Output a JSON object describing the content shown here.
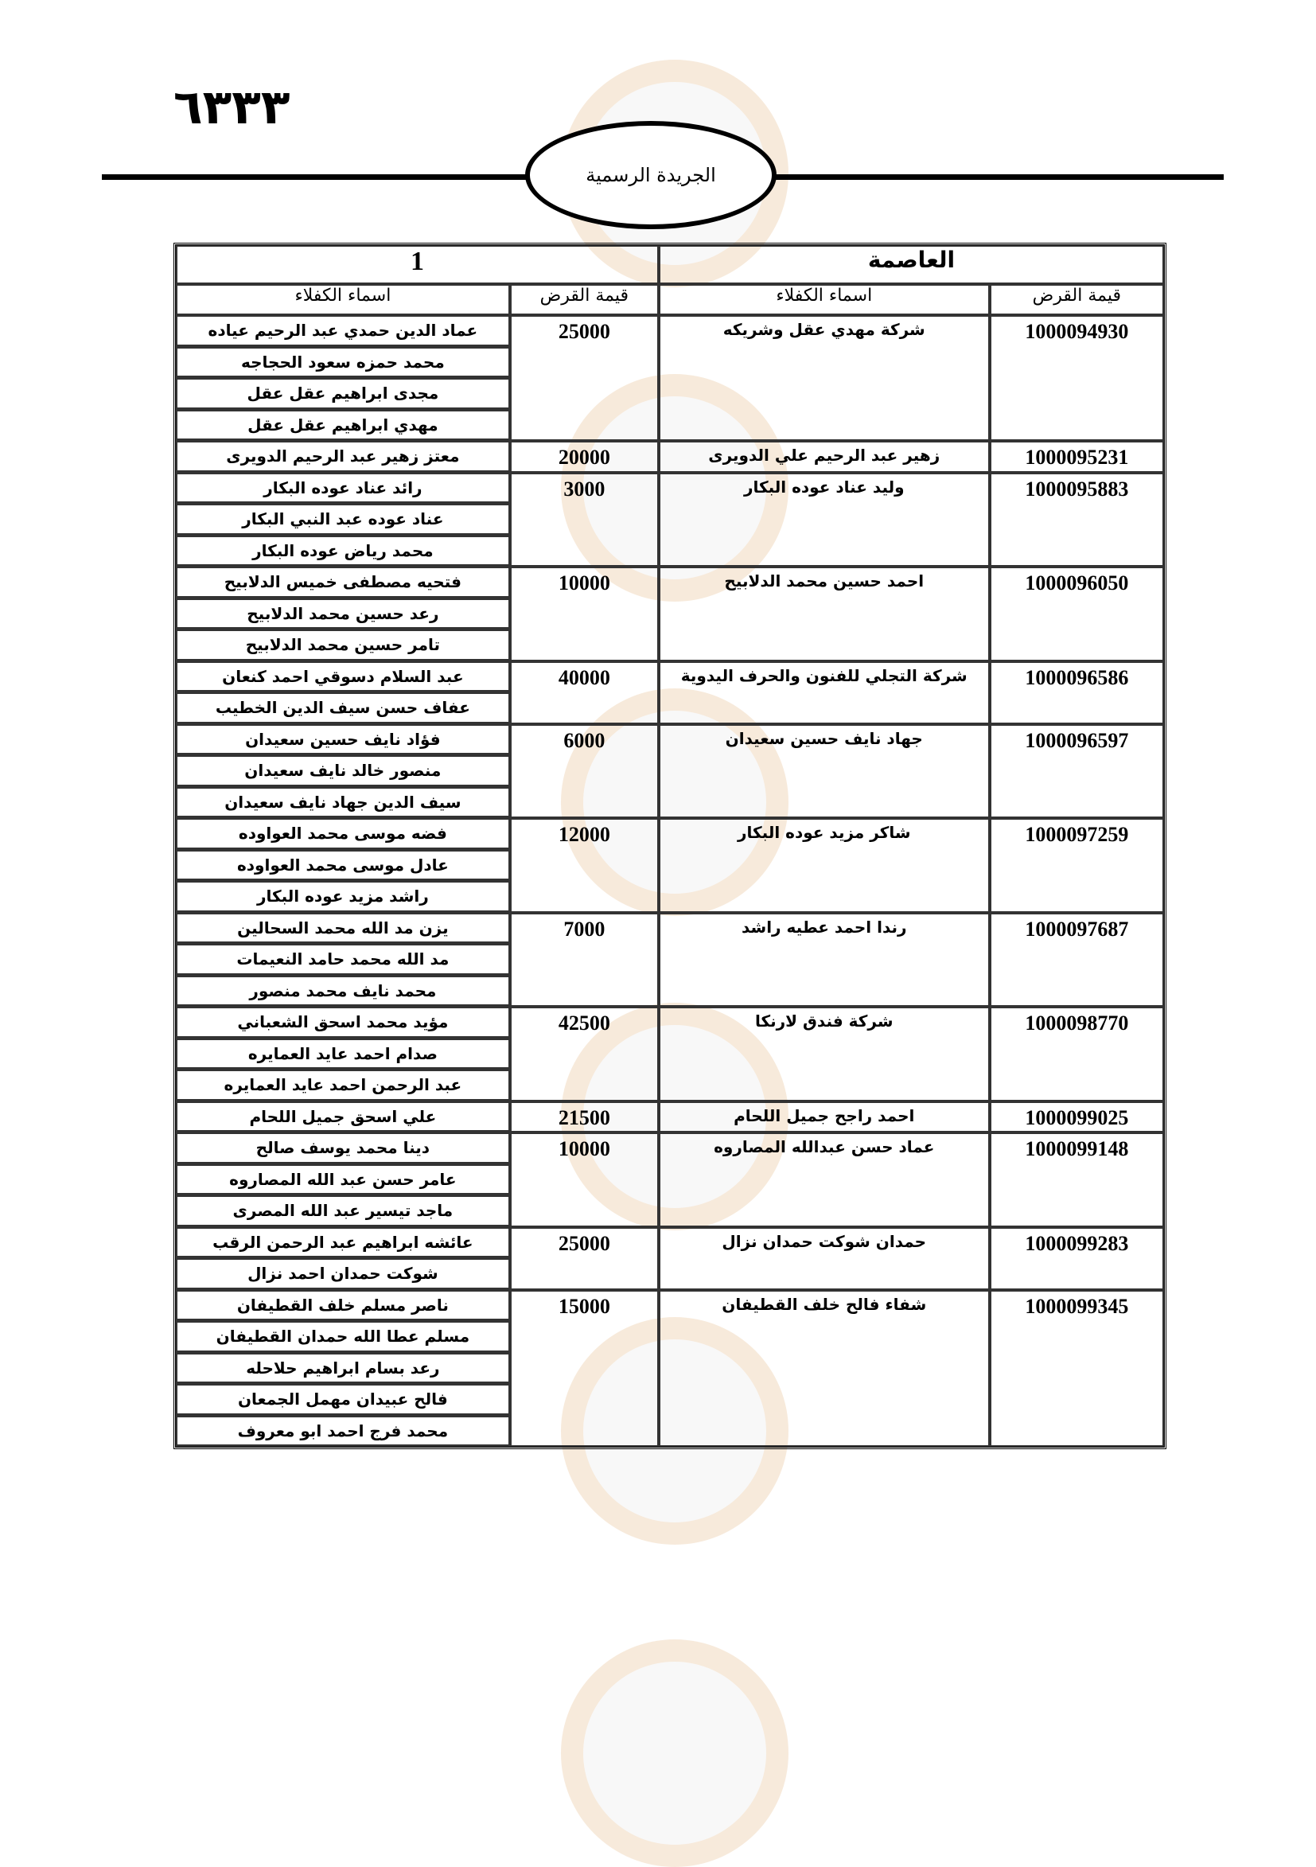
{
  "page_number": "٦٣٣٣",
  "header": {
    "publication": "الجريدة الرسمية"
  },
  "table": {
    "region": "العاصمة",
    "page_index": "1",
    "columns": {
      "loan_number": "قيمة القرض",
      "borrower": "اسماء الكفلاء",
      "loan_value": "قيمة القرض",
      "guarantors": "اسماء الكفلاء"
    },
    "records": [
      {
        "loan_number": "1000094930",
        "borrower": "شركة مهدي عقل وشريكه",
        "loan_value": "25000",
        "guarantors": [
          "عماد الدين حمدي عبد الرحيم عياده",
          "محمد حمزه سعود الحجاجه",
          "مجدى ابراهيم عقل عقل",
          "مهدي ابراهيم عقل عقل"
        ]
      },
      {
        "loan_number": "1000095231",
        "borrower": "زهير عبد الرحيم علي الدويرى",
        "loan_value": "20000",
        "guarantors": [
          "معتز زهير عبد الرحيم الدويرى"
        ]
      },
      {
        "loan_number": "1000095883",
        "borrower": "وليد عناد عوده البكار",
        "loan_value": "3000",
        "guarantors": [
          "رائد عناد عوده البكار",
          "عناد عوده عبد النبي البكار",
          "محمد رياض عوده البكار"
        ]
      },
      {
        "loan_number": "1000096050",
        "borrower": "احمد حسين محمد الدلابيح",
        "loan_value": "10000",
        "guarantors": [
          "فتحيه مصطفى خميس الدلابيح",
          "رعد حسين محمد الدلابيح",
          "تامر حسين محمد الدلابيح"
        ]
      },
      {
        "loan_number": "1000096586",
        "borrower": "شركة التجلي للفنون والحرف اليدوية",
        "loan_value": "40000",
        "guarantors": [
          "عبد السلام دسوقي احمد كنعان",
          "عفاف حسن سيف الدين الخطيب"
        ]
      },
      {
        "loan_number": "1000096597",
        "borrower": "جهاد نايف حسين سعيدان",
        "loan_value": "6000",
        "guarantors": [
          "فؤاد نايف حسين سعيدان",
          "منصور خالد نايف سعيدان",
          "سيف الدين جهاد نايف سعيدان"
        ]
      },
      {
        "loan_number": "1000097259",
        "borrower": "شاكر مزيد عوده البكار",
        "loan_value": "12000",
        "guarantors": [
          "فضه موسى محمد العواوده",
          "عادل موسى محمد العواوده",
          "راشد مزيد عوده البكار"
        ]
      },
      {
        "loan_number": "1000097687",
        "borrower": "رندا احمد عطيه راشد",
        "loan_value": "7000",
        "guarantors": [
          "يزن مد الله محمد السحالين",
          "مد الله محمد حامد النعيمات",
          "محمد نايف محمد منصور"
        ]
      },
      {
        "loan_number": "1000098770",
        "borrower": "شركة فندق لارنكا",
        "loan_value": "42500",
        "guarantors": [
          "مؤيد محمد اسحق الشعباني",
          "صدام احمد عايد العمايره",
          "عبد الرحمن احمد عايد العمايره"
        ]
      },
      {
        "loan_number": "1000099025",
        "borrower": "احمد راجح جميل اللحام",
        "loan_value": "21500",
        "guarantors": [
          "علي اسحق جميل اللحام"
        ]
      },
      {
        "loan_number": "1000099148",
        "borrower": "عماد حسن عبدالله المصاروه",
        "loan_value": "10000",
        "guarantors": [
          "دينا محمد يوسف صالح",
          "عامر حسن عبد الله المصاروه",
          "ماجد تيسير عبد الله المصرى"
        ]
      },
      {
        "loan_number": "1000099283",
        "borrower": "حمدان شوكت حمدان نزال",
        "loan_value": "25000",
        "guarantors": [
          "عائشه ابراهيم عبد الرحمن الرقب",
          "شوكت حمدان احمد نزال"
        ]
      },
      {
        "loan_number": "1000099345",
        "borrower": "شفاء فالح خلف القطيفان",
        "loan_value": "15000",
        "guarantors": [
          "ناصر مسلم خلف القطيفان",
          "مسلم عطا الله حمدان القطيفان",
          "رعد بسام ابراهيم حلاحله",
          "فالح عبيدان مهمل الجمعان",
          "محمد فرج احمد ابو معروف"
        ]
      }
    ]
  }
}
